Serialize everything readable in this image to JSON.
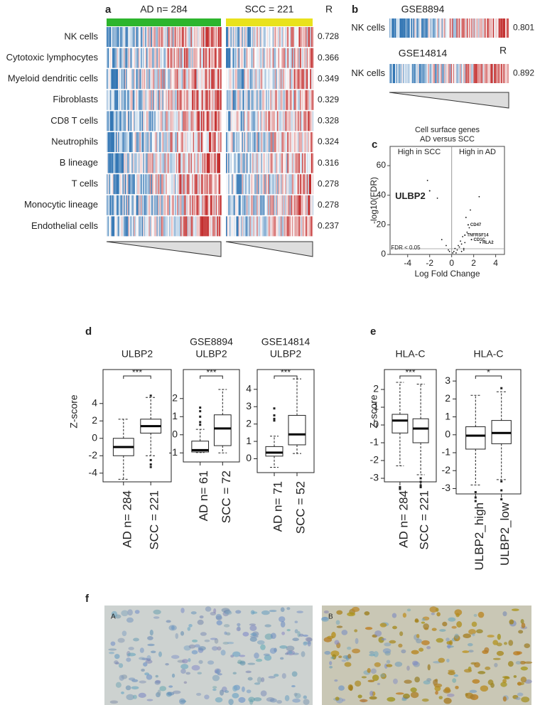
{
  "panel_labels": [
    "a",
    "b",
    "c",
    "d",
    "e",
    "f"
  ],
  "panel_a": {
    "groups": [
      "AD n= 284",
      "SCC = 221"
    ],
    "group_colors": [
      "#2db52d",
      "#e9e21c"
    ],
    "r_header": "R",
    "rows": [
      {
        "label": "NK cells",
        "r": 0.728
      },
      {
        "label": "Cytotoxic lymphocytes",
        "r": 0.366
      },
      {
        "label": "Myeloid dendritic cells",
        "r": 0.349
      },
      {
        "label": "Fibroblasts",
        "r": 0.329
      },
      {
        "label": "CD8 T cells",
        "r": 0.328
      },
      {
        "label": "Neutrophils",
        "r": 0.324
      },
      {
        "label": "B lineage",
        "r": 0.316
      },
      {
        "label": "T cells",
        "r": 0.278
      },
      {
        "label": "Monocytic lineage",
        "r": 0.278
      },
      {
        "label": "Endothelial cells",
        "r": 0.237
      }
    ]
  },
  "panel_b": {
    "r_header": "R",
    "datasets": [
      {
        "title": "GSE8894",
        "label": "NK cells",
        "r": 0.801
      },
      {
        "title": "GSE14814",
        "label": "NK cells",
        "r": 0.892
      }
    ]
  },
  "chart_data": [
    {
      "type": "scatter",
      "title": "Cell surface genes",
      "subtitle": "AD versus SCC",
      "x_label": "Log Fold Change",
      "y_label": "-log10(FDR)",
      "xlim": [
        -5.6,
        4.8
      ],
      "ylim": [
        0,
        73
      ],
      "xticks": [
        -4,
        -2,
        0,
        2,
        4
      ],
      "yticks": [
        0,
        20,
        40,
        60
      ],
      "annotations": [
        "High in SCC",
        "High in AD",
        "FDR < 0.05"
      ],
      "x": [
        -2.2,
        -1.3,
        -0.9,
        -0.5,
        -0.3,
        0.2,
        0.3,
        0.5,
        0.6,
        0.7,
        0.8,
        0.9,
        1.0,
        1.1,
        1.2,
        1.3,
        1.4,
        1.7,
        2.5,
        1.6,
        0.4,
        0.1,
        -0.2,
        0.9,
        1.1
      ],
      "y": [
        50,
        38,
        10,
        6,
        3,
        2,
        4,
        3,
        6,
        5,
        9,
        7,
        12,
        4,
        8,
        25,
        15,
        30,
        39,
        18,
        1,
        1,
        2,
        2,
        3
      ],
      "genes": {
        "names": [
          "ULBP2",
          "CD47",
          "TNFRSF14",
          "CD1C",
          "HLA2"
        ],
        "x": [
          -2,
          1.5,
          1.2,
          1.8,
          2.6
        ],
        "y": [
          43,
          20,
          13,
          10,
          8
        ]
      }
    },
    {
      "type": "box",
      "title": "ULBP2",
      "y_label": "Z-score",
      "significance": "***",
      "categories": [
        "AD n= 284",
        "SCC = 221"
      ],
      "ylim": [
        -5,
        7.9
      ],
      "yticks": [
        -4,
        -2,
        0,
        2,
        4
      ],
      "boxes": [
        {
          "min": -4.7,
          "q1": -2,
          "median": -1,
          "q3": 0,
          "max": 2.2,
          "outliers": []
        },
        {
          "min": -2,
          "q1": 0.6,
          "median": 1.4,
          "q3": 2.2,
          "max": 4.7,
          "outliers": [
            4.9,
            -2.5,
            -3,
            -3.3
          ]
        }
      ]
    },
    {
      "type": "box",
      "subtitle": "GSE8894",
      "title": "ULBP2",
      "significance": "***",
      "categories": [
        "AD n= 61",
        "SCC = 72"
      ],
      "ylim": [
        -1.5,
        3.6
      ],
      "yticks": [
        -1,
        0,
        1,
        2
      ],
      "boxes": [
        {
          "min": -0.98,
          "q1": -0.95,
          "median": -0.85,
          "q3": -0.35,
          "max": 0.3,
          "outliers": [
            1.5,
            1.3,
            1.0,
            0.7,
            0.55
          ]
        },
        {
          "min": -1,
          "q1": -0.6,
          "median": 0.35,
          "q3": 1.1,
          "max": 2.5,
          "outliers": []
        }
      ]
    },
    {
      "type": "box",
      "subtitle": "GSE14814",
      "title": "ULBP2",
      "significance": "***",
      "categories": [
        "AD n= 71",
        "SCC = 52"
      ],
      "ylim": [
        -0.8,
        5.14
      ],
      "yticks": [
        0,
        1,
        2,
        3,
        4
      ],
      "boxes": [
        {
          "min": -0.5,
          "q1": 0.15,
          "median": 0.35,
          "q3": 0.7,
          "max": 1.3,
          "outliers": [
            2.9,
            2.5,
            2.3,
            2.2
          ]
        },
        {
          "min": 0.3,
          "q1": 0.8,
          "median": 1.4,
          "q3": 2.5,
          "max": 4.6,
          "outliers": []
        }
      ]
    },
    {
      "type": "box",
      "title": "HLA-C",
      "y_label": "Z-score",
      "significance": "***",
      "categories": [
        "AD n= 284",
        "SCC = 221"
      ],
      "ylim": [
        -3.2,
        3.12
      ],
      "yticks": [
        -3,
        -2,
        -1,
        0,
        1,
        2
      ],
      "boxes": [
        {
          "min": -2.3,
          "q1": -0.45,
          "median": 0.25,
          "q3": 0.6,
          "max": 2.4,
          "outliers": [
            -3.5,
            -3.6
          ]
        },
        {
          "min": -2.8,
          "q1": -1,
          "median": -0.2,
          "q3": 0.35,
          "max": 2.3,
          "outliers": [
            -3,
            -3.2,
            -3.4,
            -3.5
          ]
        }
      ]
    },
    {
      "type": "box",
      "title": "HLA-C",
      "significance": "*",
      "categories": [
        "ULBP2_high",
        "ULBP2_low"
      ],
      "ylim": [
        -3.3,
        3.64
      ],
      "yticks": [
        -3,
        -2,
        -1,
        0,
        1,
        2,
        3
      ],
      "boxes": [
        {
          "min": -2.8,
          "q1": -0.8,
          "median": -0.05,
          "q3": 0.45,
          "max": 2.2,
          "outliers": [
            -3.2,
            -3.5,
            -3.7
          ]
        },
        {
          "min": -2.5,
          "q1": -0.5,
          "median": 0.1,
          "q3": 0.8,
          "max": 2.4,
          "outliers": [
            2.6,
            -2.6,
            -3.1,
            -3.6
          ]
        }
      ]
    }
  ],
  "panel_f": {
    "labels": [
      "A",
      "B"
    ]
  }
}
